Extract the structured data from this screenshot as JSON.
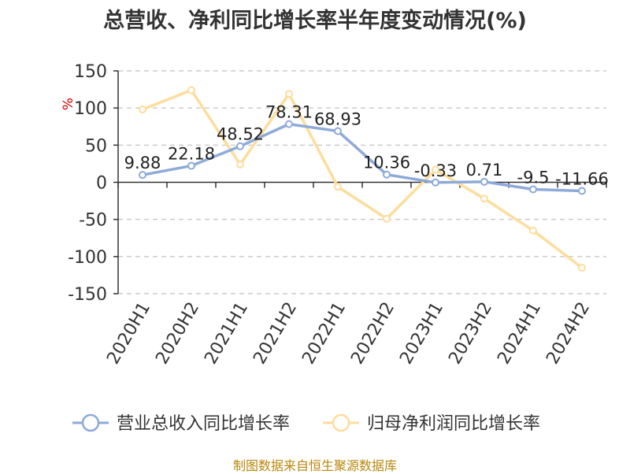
{
  "chart_data": {
    "type": "line",
    "title": "总营收、净利同比增长率半年度变动情况(%)",
    "ylabel": "%",
    "categories": [
      "2020H1",
      "2020H2",
      "2021H1",
      "2021H2",
      "2022H1",
      "2022H2",
      "2023H1",
      "2023H2",
      "2024H1",
      "2024H2"
    ],
    "ylim": [
      -150,
      150
    ],
    "yticks": [
      150,
      100,
      50,
      0,
      -50,
      -100,
      -150
    ],
    "grid": true,
    "legend_position": "bottom",
    "series": [
      {
        "name": "营业总收入同比增长率",
        "color": "#8eaad9",
        "values": [
          9.88,
          22.18,
          48.52,
          78.31,
          68.93,
          10.36,
          -0.33,
          0.71,
          -9.5,
          -11.66
        ],
        "labels": [
          "9.88",
          "22.18",
          "48.52",
          "78.31",
          "68.93",
          "10.36",
          "-0.33",
          "0.71",
          "-9.5",
          "-11.66"
        ]
      },
      {
        "name": "归母净利润同比增长率",
        "color": "#fddd9c",
        "values": [
          98,
          124,
          24,
          119,
          -6,
          -49,
          17,
          -22,
          -65,
          -115
        ]
      }
    ]
  },
  "source": "制图数据来自恒生聚源数据库"
}
